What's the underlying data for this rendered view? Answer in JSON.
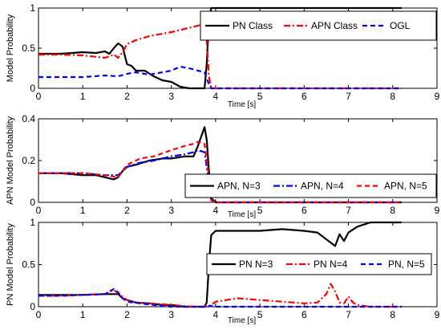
{
  "colors": {
    "black": "#000000",
    "red": "#ff0000",
    "blue": "#0000ff"
  },
  "chart_data": [
    {
      "type": "line",
      "ylabel": "Model Probability",
      "xlabel": "Time [s]",
      "xlim": [
        0,
        9
      ],
      "ylim": [
        0,
        1
      ],
      "xticks": [
        "0",
        "1",
        "2",
        "3",
        "4",
        "5",
        "6",
        "7",
        "8",
        "9"
      ],
      "yticks": [
        "0",
        "0.5",
        "1"
      ],
      "legend_position": "top-right",
      "series": [
        {
          "name": "PN Class",
          "color": "#000000",
          "dash": "solid",
          "x": [
            0,
            0.5,
            1.0,
            1.3,
            1.5,
            1.6,
            1.7,
            1.8,
            1.9,
            2.0,
            2.1,
            2.2,
            2.4,
            2.6,
            2.8,
            3.0,
            3.2,
            3.4,
            3.6,
            3.75,
            3.8,
            3.85,
            3.9,
            4.0,
            4.5,
            6,
            8.2
          ],
          "y": [
            0.43,
            0.43,
            0.45,
            0.44,
            0.46,
            0.43,
            0.5,
            0.56,
            0.52,
            0.3,
            0.28,
            0.22,
            0.22,
            0.15,
            0.1,
            0.08,
            0.02,
            0.0,
            0.0,
            0.0,
            0.3,
            0.85,
            1.0,
            1.0,
            1.0,
            1.0,
            1.0
          ]
        },
        {
          "name": "APN Class",
          "color": "#ff0000",
          "dash": "dashdot",
          "x": [
            0,
            0.5,
            1.0,
            1.5,
            1.7,
            1.8,
            1.9,
            2.0,
            2.2,
            2.5,
            2.8,
            3.0,
            3.3,
            3.6,
            3.75,
            3.8,
            3.85,
            3.9,
            4.0,
            5,
            8.2
          ],
          "y": [
            0.42,
            0.42,
            0.41,
            0.38,
            0.42,
            0.38,
            0.45,
            0.55,
            0.6,
            0.65,
            0.68,
            0.7,
            0.74,
            0.78,
            0.8,
            0.6,
            0.15,
            0.0,
            0.0,
            0.0,
            0.0
          ]
        },
        {
          "name": "OGL",
          "color": "#0000ff",
          "dash": "dashed",
          "x": [
            0,
            1.0,
            1.5,
            1.8,
            2.0,
            2.2,
            2.5,
            2.8,
            3.0,
            3.2,
            3.4,
            3.6,
            3.75,
            3.85,
            3.9,
            4.0,
            8.2
          ],
          "y": [
            0.14,
            0.14,
            0.16,
            0.15,
            0.18,
            0.2,
            0.17,
            0.2,
            0.22,
            0.27,
            0.25,
            0.22,
            0.2,
            0.05,
            0.0,
            0.0,
            0.0
          ]
        }
      ]
    },
    {
      "type": "line",
      "ylabel": "APN Model Probability",
      "xlabel": "Time [s]",
      "xlim": [
        0,
        9
      ],
      "ylim": [
        0,
        0.4
      ],
      "xticks": [
        "0",
        "1",
        "2",
        "3",
        "4",
        "5",
        "6",
        "7",
        "8",
        "9"
      ],
      "yticks": [
        "0",
        "0.2",
        "0.4"
      ],
      "legend_position": "bottom-right",
      "series": [
        {
          "name": "APN, N=3",
          "color": "#000000",
          "dash": "solid",
          "x": [
            0,
            0.5,
            1.0,
            1.3,
            1.5,
            1.7,
            1.8,
            1.9,
            2.0,
            2.2,
            2.5,
            2.8,
            3.0,
            3.3,
            3.5,
            3.6,
            3.7,
            3.75,
            3.8,
            3.85,
            3.9,
            4.0,
            8.2
          ],
          "y": [
            0.14,
            0.14,
            0.13,
            0.13,
            0.12,
            0.11,
            0.12,
            0.15,
            0.17,
            0.18,
            0.2,
            0.21,
            0.21,
            0.22,
            0.22,
            0.27,
            0.33,
            0.36,
            0.3,
            0.15,
            0.02,
            0.0,
            0.0
          ]
        },
        {
          "name": "APN, N=4",
          "color": "#0000ff",
          "dash": "dashdot",
          "x": [
            0,
            0.5,
            1.0,
            1.5,
            1.8,
            2.0,
            2.3,
            2.6,
            3.0,
            3.3,
            3.5,
            3.6,
            3.75,
            3.85,
            3.9,
            4.0,
            8.2
          ],
          "y": [
            0.14,
            0.14,
            0.14,
            0.13,
            0.13,
            0.17,
            0.19,
            0.2,
            0.22,
            0.23,
            0.24,
            0.25,
            0.24,
            0.1,
            0.01,
            0.0,
            0.0
          ]
        },
        {
          "name": "APN, N=5",
          "color": "#ff0000",
          "dash": "dashed",
          "x": [
            0,
            0.5,
            1.0,
            1.5,
            1.8,
            2.0,
            2.3,
            2.6,
            3.0,
            3.3,
            3.5,
            3.6,
            3.75,
            3.85,
            3.9,
            4.0,
            8.2
          ],
          "y": [
            0.14,
            0.14,
            0.14,
            0.13,
            0.12,
            0.18,
            0.21,
            0.22,
            0.25,
            0.27,
            0.28,
            0.29,
            0.28,
            0.12,
            0.01,
            0.0,
            0.0
          ]
        }
      ]
    },
    {
      "type": "line",
      "ylabel": "PN Model Probability",
      "xlabel": "Time [s]",
      "xlim": [
        0,
        9
      ],
      "ylim": [
        0,
        1
      ],
      "xticks": [
        "0",
        "1",
        "2",
        "3",
        "4",
        "5",
        "6",
        "7",
        "8",
        "9"
      ],
      "yticks": [
        "0",
        "0.5",
        "1"
      ],
      "legend_position": "middle-right",
      "series": [
        {
          "name": "PN N=3",
          "color": "#000000",
          "dash": "solid",
          "x": [
            0,
            0.5,
            1.0,
            1.5,
            1.8,
            1.9,
            2.0,
            2.2,
            2.5,
            2.8,
            3.0,
            3.3,
            3.6,
            3.75,
            3.8,
            3.85,
            3.9,
            4.0,
            4.5,
            5.0,
            5.5,
            6.0,
            6.3,
            6.5,
            6.7,
            6.8,
            6.9,
            7.0,
            7.2,
            7.5,
            8.2
          ],
          "y": [
            0.14,
            0.14,
            0.14,
            0.15,
            0.15,
            0.1,
            0.08,
            0.05,
            0.04,
            0.02,
            0.02,
            0.0,
            0.0,
            0.0,
            0.05,
            0.5,
            0.85,
            0.9,
            0.9,
            0.9,
            0.92,
            0.9,
            0.88,
            0.8,
            0.72,
            0.86,
            0.78,
            0.88,
            0.95,
            1.0,
            1.0
          ]
        },
        {
          "name": "PN N=4",
          "color": "#ff0000",
          "dash": "dashdot",
          "x": [
            0,
            0.5,
            1.0,
            1.5,
            1.7,
            1.9,
            2.0,
            2.2,
            2.5,
            2.8,
            3.0,
            3.5,
            3.8,
            3.9,
            4.0,
            4.5,
            5.0,
            5.5,
            6.0,
            6.3,
            6.5,
            6.6,
            6.7,
            6.8,
            6.9,
            7.0,
            7.1,
            7.2,
            7.5,
            8.2
          ],
          "y": [
            0.13,
            0.13,
            0.14,
            0.15,
            0.2,
            0.12,
            0.08,
            0.05,
            0.04,
            0.03,
            0.02,
            0.0,
            0.0,
            0.02,
            0.06,
            0.1,
            0.08,
            0.06,
            0.04,
            0.05,
            0.15,
            0.27,
            0.18,
            0.05,
            0.04,
            0.12,
            0.05,
            0.02,
            0.0,
            0.0
          ]
        },
        {
          "name": "PN, N=5",
          "color": "#0000ff",
          "dash": "dashed",
          "x": [
            0,
            0.5,
            1.0,
            1.5,
            1.7,
            1.8,
            1.9,
            2.0,
            2.3,
            2.6,
            3.0,
            3.5,
            3.8,
            3.9,
            4.0,
            8.2
          ],
          "y": [
            0.13,
            0.13,
            0.14,
            0.15,
            0.21,
            0.17,
            0.1,
            0.06,
            0.04,
            0.02,
            0.0,
            0.0,
            0.0,
            0.01,
            0.0,
            0.0
          ]
        }
      ]
    }
  ]
}
